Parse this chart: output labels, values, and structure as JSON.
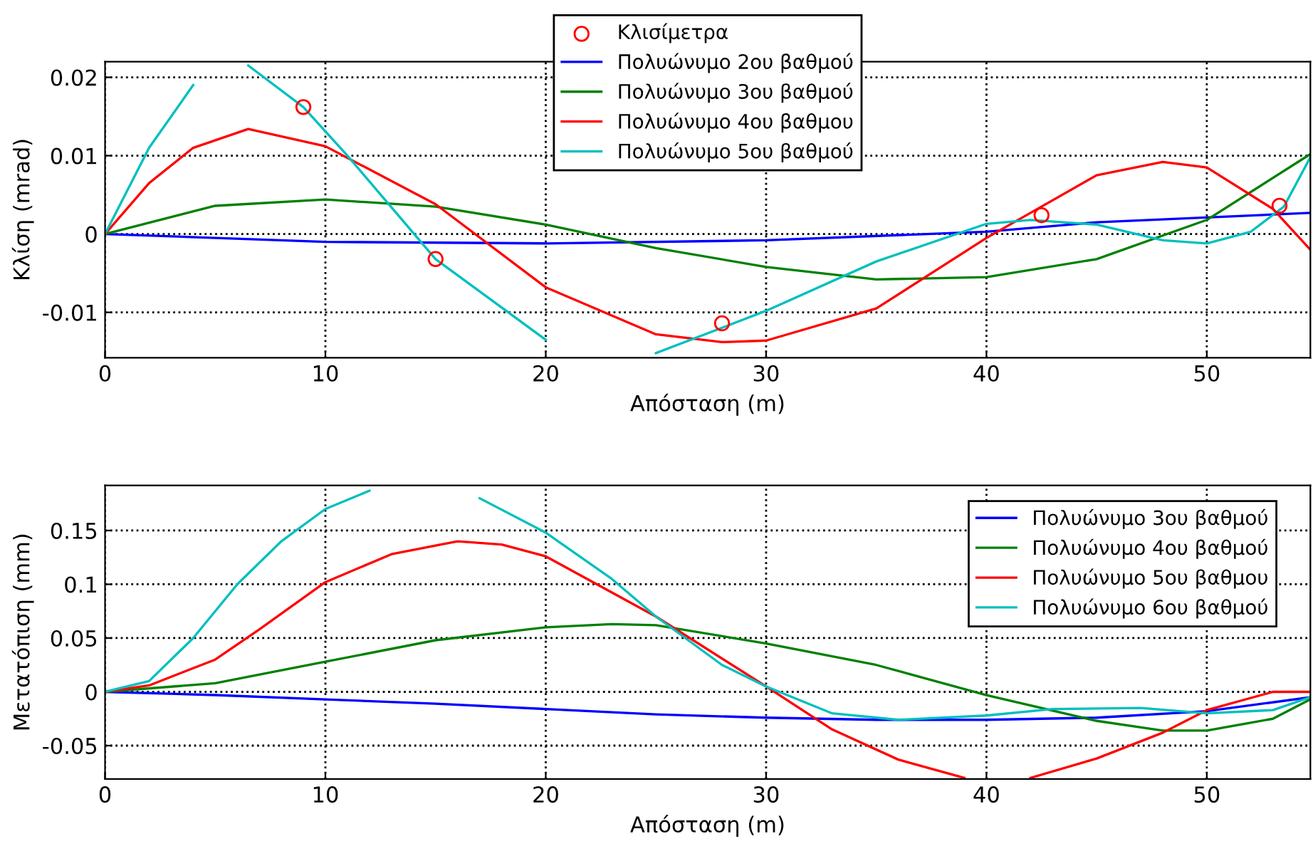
{
  "chart_data": [
    {
      "type": "line",
      "xlabel": "Απόσταση (m)",
      "ylabel": "Κλίση (mrad)",
      "xlim": [
        0,
        54.7
      ],
      "ylim": [
        -0.0158,
        0.022
      ],
      "xticks": [
        0,
        10,
        20,
        30,
        40,
        50
      ],
      "yticks": [
        -0.01,
        0,
        0.01,
        0.02
      ],
      "grid": true,
      "legend": "top",
      "series": [
        {
          "name": "Κλισίμετρα",
          "type": "scatter",
          "marker": "circle",
          "color": "#ff0000",
          "x": [
            9,
            15,
            28,
            42.5,
            53.3
          ],
          "values": [
            0.0162,
            -0.0032,
            -0.0114,
            0.0024,
            0.0036
          ]
        },
        {
          "name": "Πολυώνυμο 2ου βαθμού",
          "color": "#0000ff",
          "x": [
            0,
            10,
            20,
            30,
            40,
            45,
            54.7
          ],
          "values": [
            0,
            -0.001,
            -0.0012,
            -0.0008,
            0.0003,
            0.0015,
            0.0027
          ]
        },
        {
          "name": "Πολυώνυμο 3ου βαθμού",
          "color": "#008000",
          "x": [
            0,
            5,
            10,
            15,
            20,
            25,
            30,
            35,
            40,
            45,
            50,
            54.7
          ],
          "values": [
            0,
            0.0036,
            0.0044,
            0.0035,
            0.0012,
            -0.0018,
            -0.0042,
            -0.0058,
            -0.0055,
            -0.0032,
            0.0018,
            0.0102
          ]
        },
        {
          "name": "Πολυώνυμο 4ου βαθμου",
          "color": "#ff0000",
          "x": [
            0,
            2,
            4,
            6.5,
            10,
            15,
            20,
            25,
            28,
            30,
            35,
            40,
            45,
            48,
            50,
            53,
            54.7
          ],
          "values": [
            0,
            0.0065,
            0.011,
            0.0134,
            0.0112,
            0.0038,
            -0.0068,
            -0.0128,
            -0.0138,
            -0.0136,
            -0.0095,
            -0.0005,
            0.0075,
            0.0092,
            0.0085,
            0.0032,
            -0.002
          ]
        },
        {
          "name": "Πολυώνυμο 5ου βαθμού",
          "color": "#00bfbf",
          "x": [
            0,
            2,
            4,
            4.8,
            6,
            6.5,
            9,
            11,
            15,
            20,
            23,
            25,
            30,
            35,
            40,
            42,
            45,
            48,
            50,
            52,
            53.5,
            54.7
          ],
          "values": [
            0,
            0.011,
            0.019,
            null,
            null,
            0.0215,
            0.0162,
            0.01,
            -0.0032,
            -0.0135,
            null,
            -0.0152,
            -0.0098,
            -0.0035,
            0.0013,
            0.0018,
            0.0012,
            -0.0008,
            -0.0012,
            0.0003,
            0.0035,
            0.0098
          ]
        }
      ]
    },
    {
      "type": "line",
      "xlabel": "Απόσταση (m)",
      "ylabel": "Μετατόπιση (mm)",
      "xlim": [
        0,
        54.7
      ],
      "ylim": [
        -0.081,
        0.192
      ],
      "xticks": [
        0,
        10,
        20,
        30,
        40,
        50
      ],
      "yticks": [
        -0.05,
        0,
        0.05,
        0.1,
        0.15
      ],
      "grid": true,
      "legend": "top right",
      "series": [
        {
          "name": "Πολυώνυμο 3ου βαθμού",
          "color": "#0000ff",
          "x": [
            0,
            5,
            10,
            15,
            20,
            25,
            30,
            35,
            40,
            45,
            50,
            54.7
          ],
          "values": [
            0,
            -0.003,
            -0.007,
            -0.011,
            -0.016,
            -0.021,
            -0.024,
            -0.026,
            -0.026,
            -0.024,
            -0.018,
            -0.005
          ]
        },
        {
          "name": "Πολυώνυμο 4ου βαθμού",
          "color": "#008000",
          "x": [
            0,
            5,
            10,
            15,
            20,
            23,
            25,
            30,
            35,
            40,
            45,
            48,
            50,
            53,
            54.7
          ],
          "values": [
            0,
            0.008,
            0.028,
            0.048,
            0.06,
            0.063,
            0.062,
            0.045,
            0.025,
            -0.003,
            -0.027,
            -0.036,
            -0.036,
            -0.025,
            -0.007
          ]
        },
        {
          "name": "Πολυώνυμο 5ου βαθμου",
          "color": "#ff0000",
          "x": [
            0,
            2,
            5,
            7,
            10,
            13,
            16,
            18,
            20,
            25,
            30,
            33,
            36,
            39,
            40,
            42,
            45,
            48,
            50,
            53,
            54.7
          ],
          "values": [
            0,
            0.006,
            0.03,
            0.058,
            0.102,
            0.128,
            0.14,
            0.137,
            0.126,
            0.07,
            0.005,
            -0.035,
            -0.063,
            -0.08,
            null,
            -0.08,
            -0.062,
            -0.038,
            -0.017,
            0.0,
            0.0
          ]
        },
        {
          "name": "Πολυώνυμο 6ου βαθμού",
          "color": "#00bfbf",
          "x": [
            0,
            2,
            4,
            6,
            8,
            10,
            12,
            13,
            15,
            17,
            20,
            23,
            25,
            28,
            30,
            33,
            36,
            40,
            43,
            47,
            50,
            53,
            54.7
          ],
          "values": [
            0,
            0.01,
            0.05,
            0.1,
            0.14,
            0.17,
            0.187,
            null,
            null,
            0.18,
            0.148,
            0.105,
            0.07,
            0.025,
            0.005,
            -0.02,
            -0.026,
            -0.022,
            -0.016,
            -0.015,
            -0.02,
            -0.017,
            -0.005
          ]
        }
      ]
    }
  ]
}
